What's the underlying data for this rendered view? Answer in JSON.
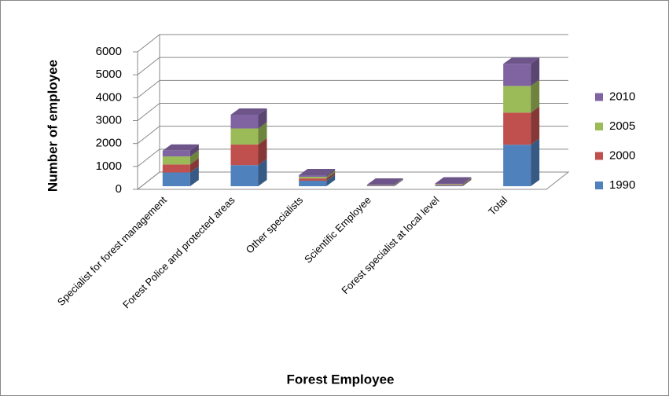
{
  "chart_data": {
    "type": "bar3d_stacked",
    "y_label": "Number of employee",
    "x_label": "Forest Employee",
    "categories": [
      "Specialist for forest management",
      "Forest Police and protected areas",
      "Other specialists",
      "Scientific Employee",
      "Forest specialist at local level",
      "Total"
    ],
    "series": [
      {
        "name": "1990",
        "color": "#4f81bd",
        "values": [
          600,
          920,
          240,
          20,
          30,
          1810
        ]
      },
      {
        "name": "2000",
        "color": "#c0504d",
        "values": [
          350,
          900,
          100,
          20,
          30,
          1400
        ]
      },
      {
        "name": "2005",
        "color": "#9bbb59",
        "values": [
          350,
          700,
          70,
          15,
          30,
          1165
        ]
      },
      {
        "name": "2010",
        "color": "#8064a2",
        "values": [
          250,
          600,
          70,
          15,
          30,
          965
        ]
      }
    ],
    "ylim": [
      0,
      6000
    ],
    "yticks": [
      0,
      1000,
      2000,
      3000,
      4000,
      5000,
      6000
    ],
    "grid": true,
    "legend": "right"
  }
}
